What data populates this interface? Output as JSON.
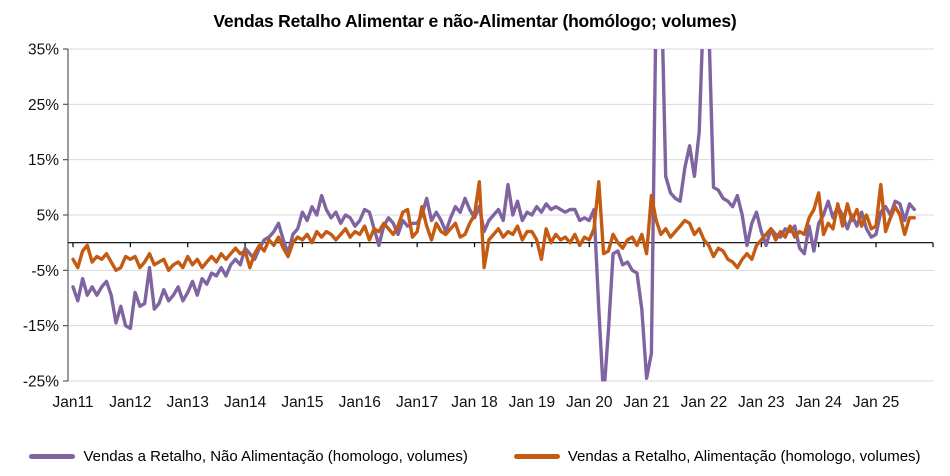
{
  "chart_data": {
    "type": "line",
    "title": "Vendas Retalho Alimentar e não-Alimentar (homólogo; volumes)",
    "xlabel": "",
    "ylabel": "",
    "ylim": [
      -25,
      35
    ],
    "grid": "horizontal",
    "legend_position": "bottom",
    "x_frequency": "monthly",
    "x_range": "Jan 2011 to Sep 2025",
    "x_tick_labels": [
      "Jan11",
      "Jan12",
      "Jan13",
      "Jan14",
      "Jan15",
      "Jan16",
      "Jan17",
      "Jan 18",
      "Jan 19",
      "Jan 20",
      "Jan 21",
      "Jan 22",
      "Jan 23",
      "Jan 24",
      "Jan 25"
    ],
    "y_tick_labels": [
      "35%",
      "25%",
      "15%",
      "5%",
      "-5%",
      "-15%",
      "-25%"
    ],
    "axis_color": "#595959",
    "gridline_color": "#d9d9d9",
    "zero_line_color": "#000000",
    "series": [
      {
        "name": "Vendas a Retalho, Não Alimentação (homologo, volumes)",
        "color": "#8064A2",
        "values": [
          -8.0,
          -10.5,
          -6.5,
          -9.5,
          -8.0,
          -9.5,
          -8.0,
          -7.0,
          -9.5,
          -14.5,
          -11.5,
          -15.0,
          -15.5,
          -9.0,
          -11.5,
          -11.0,
          -4.5,
          -12.0,
          -11.0,
          -8.5,
          -10.5,
          -9.5,
          -8.0,
          -10.5,
          -9.0,
          -7.0,
          -9.5,
          -6.5,
          -7.5,
          -5.5,
          -6.0,
          -4.5,
          -6.0,
          -4.0,
          -3.0,
          -4.0,
          -1.0,
          -2.0,
          -3.0,
          -1.0,
          0.5,
          1.0,
          2.0,
          3.5,
          0.5,
          -2.0,
          1.5,
          2.5,
          5.5,
          4.0,
          6.5,
          5.0,
          8.5,
          6.0,
          4.5,
          5.5,
          3.5,
          5.0,
          4.5,
          3.0,
          4.0,
          6.0,
          5.5,
          2.5,
          -0.5,
          3.0,
          4.5,
          3.5,
          1.5,
          4.0,
          3.0,
          3.5,
          3.5,
          5.0,
          8.0,
          4.0,
          5.5,
          4.0,
          2.0,
          4.5,
          6.5,
          5.5,
          8.0,
          6.0,
          4.5,
          6.5,
          2.0,
          4.0,
          5.0,
          6.0,
          4.0,
          10.5,
          5.0,
          7.5,
          4.0,
          5.5,
          5.0,
          6.5,
          5.5,
          7.0,
          6.0,
          6.5,
          6.0,
          5.5,
          6.0,
          6.0,
          4.0,
          4.5,
          4.0,
          6.0,
          -12.0,
          -28.0,
          -16.0,
          -2.0,
          -1.5,
          -4.0,
          -3.5,
          -5.0,
          -5.5,
          -12.0,
          -24.5,
          -20.0,
          45.0,
          50.0,
          12.0,
          9.0,
          8.0,
          7.5,
          13.5,
          17.5,
          12.0,
          20.0,
          45.0,
          40.0,
          10.0,
          9.5,
          8.0,
          7.5,
          6.5,
          8.5,
          5.0,
          -0.5,
          3.5,
          5.5,
          2.0,
          -0.5,
          2.5,
          1.5,
          1.0,
          2.5,
          2.0,
          3.0,
          -1.0,
          -2.0,
          3.0,
          -1.5,
          3.5,
          5.0,
          7.5,
          4.5,
          6.5,
          5.0,
          2.5,
          5.0,
          3.0,
          5.5,
          2.5,
          1.0,
          1.5,
          5.5,
          6.5,
          5.0,
          7.5,
          7.0,
          4.0,
          7.0,
          6.0
        ]
      },
      {
        "name": "Vendas a Retalho, Alimentação (homologo, volumes)",
        "color": "#C55A11",
        "values": [
          -3.0,
          -4.5,
          -1.5,
          -0.5,
          -3.5,
          -2.5,
          -3.0,
          -2.0,
          -3.5,
          -5.0,
          -4.5,
          -2.5,
          -3.0,
          -2.5,
          -4.5,
          -3.5,
          -2.0,
          -4.0,
          -3.5,
          -3.0,
          -5.0,
          -4.0,
          -3.5,
          -4.5,
          -2.5,
          -4.0,
          -3.0,
          -4.5,
          -3.5,
          -2.5,
          -3.5,
          -2.0,
          -3.0,
          -2.0,
          -1.0,
          -2.0,
          -1.5,
          -4.5,
          -2.0,
          -0.5,
          -1.5,
          0.5,
          -0.5,
          1.0,
          -1.0,
          -2.5,
          0.0,
          1.0,
          0.5,
          1.5,
          0.0,
          2.0,
          1.0,
          2.0,
          1.5,
          0.5,
          1.5,
          2.5,
          1.0,
          2.0,
          1.5,
          3.0,
          0.5,
          2.5,
          2.0,
          3.5,
          2.5,
          1.5,
          3.0,
          5.5,
          6.0,
          1.0,
          2.0,
          6.5,
          3.0,
          0.5,
          3.5,
          2.0,
          1.5,
          2.5,
          3.5,
          1.0,
          1.5,
          3.5,
          5.0,
          11.0,
          -4.5,
          0.5,
          1.5,
          2.5,
          1.0,
          2.0,
          1.5,
          3.0,
          0.5,
          2.0,
          2.0,
          0.5,
          -3.0,
          2.5,
          0.0,
          1.5,
          0.5,
          1.0,
          0.0,
          1.5,
          -0.5,
          1.0,
          0.5,
          2.5,
          11.0,
          -2.0,
          -1.5,
          1.5,
          0.0,
          -1.0,
          0.5,
          1.0,
          -0.5,
          1.5,
          -2.0,
          8.5,
          4.0,
          1.5,
          2.5,
          1.0,
          2.0,
          3.0,
          4.0,
          3.5,
          1.5,
          2.5,
          0.5,
          -0.5,
          -2.5,
          -1.0,
          -1.5,
          -3.0,
          -3.5,
          -4.5,
          -3.0,
          -2.0,
          -3.0,
          -0.5,
          0.5,
          1.5,
          2.5,
          0.5,
          2.0,
          1.0,
          3.0,
          1.0,
          2.0,
          1.5,
          4.5,
          6.0,
          9.0,
          1.5,
          3.5,
          2.5,
          7.0,
          3.0,
          7.0,
          4.0,
          6.0,
          3.0,
          5.0,
          2.5,
          3.0,
          10.5,
          2.0,
          4.5,
          6.5,
          5.0,
          1.5,
          4.5,
          4.5
        ]
      }
    ]
  }
}
